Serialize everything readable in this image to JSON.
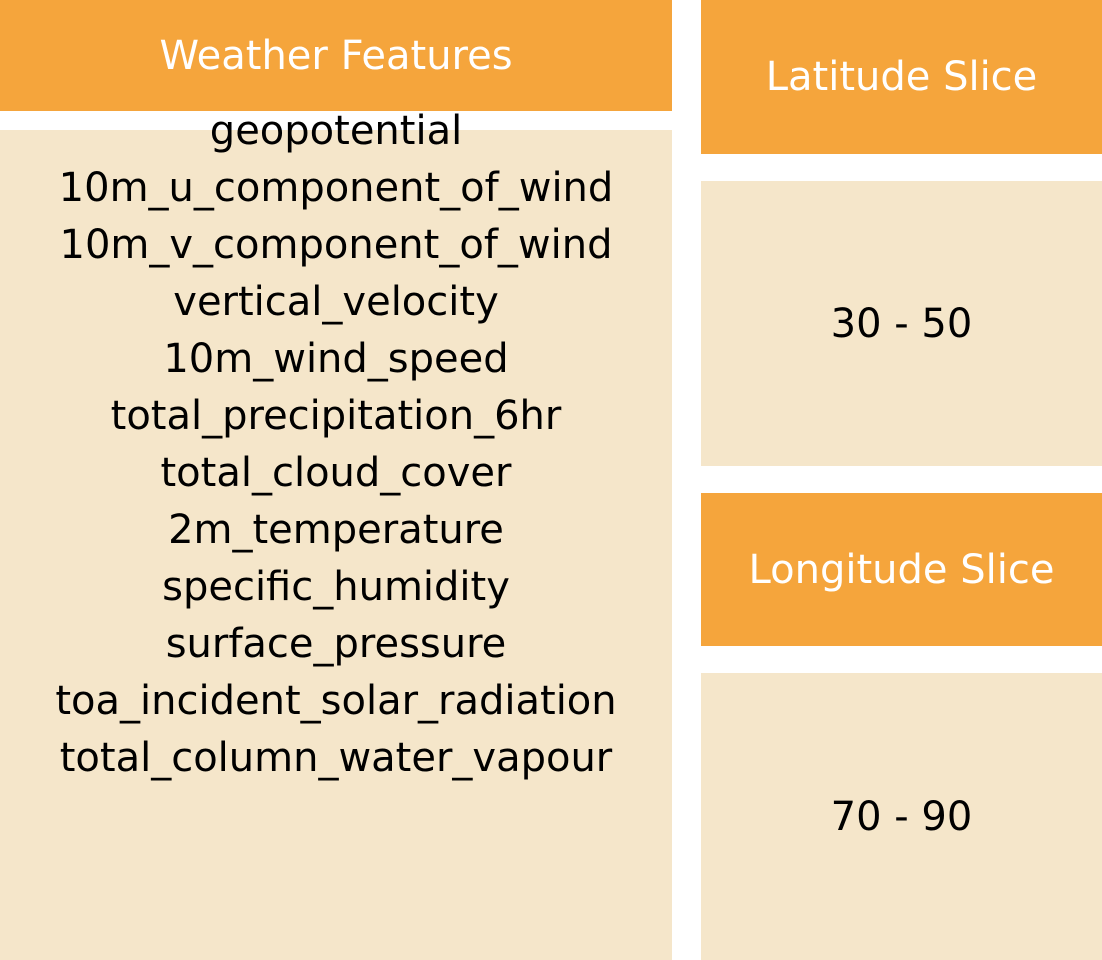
{
  "colors": {
    "header_bg": "#F5A53C",
    "body_bg": "#F5E6CA",
    "header_text": "#FFFFFF",
    "body_text": "#000000"
  },
  "weather_features": {
    "title": "Weather Features",
    "items": [
      "geopotential",
      "10m_u_component_of_wind",
      "10m_v_component_of_wind",
      "vertical_velocity",
      "10m_wind_speed",
      "total_precipitation_6hr",
      "total_cloud_cover",
      "2m_temperature",
      "specific_humidity",
      "surface_pressure",
      "toa_incident_solar_radiation",
      "total_column_water_vapour"
    ]
  },
  "latitude_slice": {
    "title": "Latitude Slice",
    "value": "30 - 50"
  },
  "longitude_slice": {
    "title": "Longitude Slice",
    "value": "70 - 90"
  }
}
